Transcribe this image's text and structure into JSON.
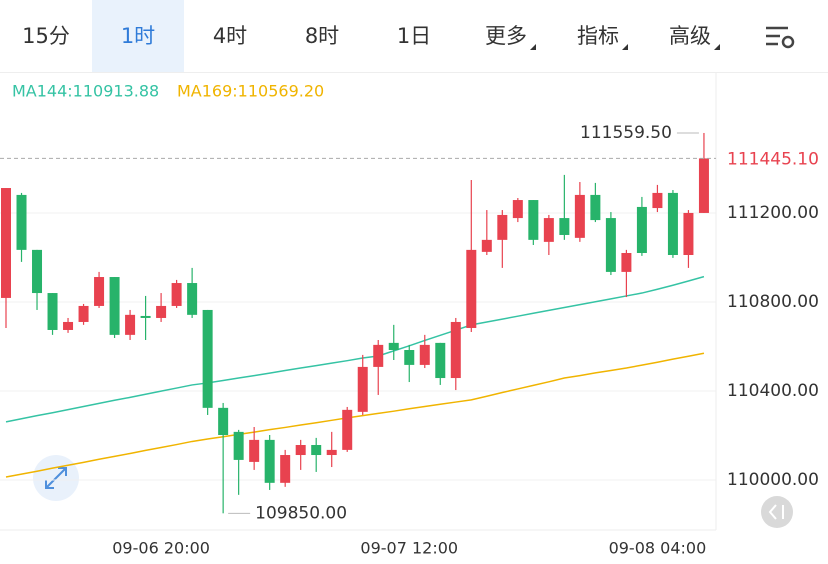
{
  "tabs": {
    "items": [
      "15分",
      "1时",
      "4时",
      "8时",
      "1日",
      "更多",
      "指标",
      "高级"
    ],
    "active": 1
  },
  "chart_data": {
    "type": "candlestick",
    "categories": [
      null,
      null,
      null,
      null,
      null,
      null,
      null,
      null,
      null,
      null,
      "09-06 20:00",
      null,
      null,
      null,
      null,
      null,
      null,
      null,
      null,
      null,
      null,
      null,
      null,
      null,
      null,
      null,
      "09-07 12:00",
      null,
      null,
      null,
      null,
      null,
      null,
      null,
      null,
      null,
      null,
      null,
      null,
      null,
      null,
      null,
      "09-08 04:00",
      null,
      null,
      null
    ],
    "open": [
      110818,
      111281,
      111034,
      110840,
      110674,
      110710,
      110782,
      110912,
      110652,
      110737,
      110728,
      110782,
      110885,
      110764,
      110324,
      110216,
      110081,
      110180,
      109987,
      110112,
      110157,
      110112,
      110135,
      110306,
      110508,
      110616,
      110584,
      110517,
      110616,
      110458,
      110683,
      111025,
      111079,
      111177,
      111258,
      111070,
      111177,
      111088,
      111281,
      111177,
      110935,
      111227,
      111222,
      111290,
      111011,
      111200
    ],
    "high": [
      111312,
      111290,
      111034,
      110840,
      110728,
      110791,
      110935,
      110912,
      110764,
      110827,
      110840,
      110899,
      110953,
      110764,
      110346,
      110225,
      110238,
      110202,
      110135,
      110180,
      110189,
      110216,
      110328,
      110562,
      110629,
      110697,
      110607,
      110652,
      110616,
      110728,
      111348,
      111213,
      111213,
      111267,
      111258,
      111191,
      111371,
      111339,
      111335,
      111204,
      111034,
      111272,
      111326,
      111303,
      111213,
      111559.5
    ],
    "low": [
      110683,
      110980,
      110764,
      110652,
      110661,
      110697,
      110773,
      110638,
      110629,
      110629,
      110710,
      110773,
      110728,
      110292,
      109850,
      109933,
      110045,
      109955,
      109969,
      110045,
      110036,
      110058,
      110126,
      110292,
      110382,
      110539,
      110440,
      110503,
      110427,
      110404,
      110665,
      111011,
      110953,
      111159,
      111056,
      111011,
      111079,
      111070,
      111159,
      110921,
      110822,
      111007,
      111204,
      110998,
      110953,
      111200
    ],
    "close": [
      111312,
      111034,
      110840,
      110674,
      110710,
      110782,
      110912,
      110652,
      110742,
      110728,
      110782,
      110885,
      110742,
      110324,
      110202,
      110090,
      110180,
      109987,
      110112,
      110157,
      110112,
      110135,
      110315,
      110508,
      110607,
      110584,
      110517,
      110607,
      110458,
      110710,
      111034,
      111079,
      111191,
      111258,
      111079,
      111177,
      111101,
      111281,
      111168,
      110935,
      111020,
      111020,
      111290,
      111011,
      111200,
      111445.1
    ],
    "up_color": "#e8424f",
    "down_color": "#27b36a",
    "series": [
      {
        "name": "MA144:110913.88",
        "color": "#35c3a4",
        "values": [
          110261,
          110275,
          110289,
          110302,
          110316,
          110330,
          110344,
          110358,
          110371,
          110385,
          110399,
          110413,
          110427,
          110436,
          110447,
          110458,
          110469,
          110480,
          110492,
          110503,
          110514,
          110525,
          110536,
          110548,
          110557,
          110580,
          110603,
          110627,
          110650,
          110673,
          110697,
          110710,
          110723,
          110736,
          110749,
          110762,
          110775,
          110788,
          110801,
          110814,
          110827,
          110840,
          110857,
          110875,
          110894,
          110913.88
        ]
      },
      {
        "name": "MA169:110569.20",
        "color": "#f0b400",
        "values": [
          110013,
          110026,
          110039,
          110053,
          110066,
          110079,
          110093,
          110106,
          110119,
          110133,
          110146,
          110159,
          110173,
          110184,
          110194,
          110205,
          110215,
          110226,
          110236,
          110247,
          110257,
          110268,
          110279,
          110289,
          110299,
          110309,
          110320,
          110330,
          110340,
          110350,
          110360,
          110376,
          110393,
          110409,
          110425,
          110441,
          110458,
          110469,
          110481,
          110492,
          110503,
          110516,
          110529,
          110543,
          110556,
          110569.2
        ]
      }
    ],
    "ylim": [
      109775,
      111820
    ],
    "yticks": [
      {
        "value": 110000,
        "label": "110000.00"
      },
      {
        "value": 110400,
        "label": "110400.00"
      },
      {
        "value": 110800,
        "label": "110800.00"
      },
      {
        "value": 111200,
        "label": "111200.00"
      }
    ],
    "grid": true,
    "last_price": {
      "value": 111445.1,
      "label": "111445.10"
    },
    "high_label": {
      "value": 111559.5,
      "label": "111559.50"
    },
    "low_label": {
      "value": 109850,
      "label": "109850.00"
    }
  }
}
